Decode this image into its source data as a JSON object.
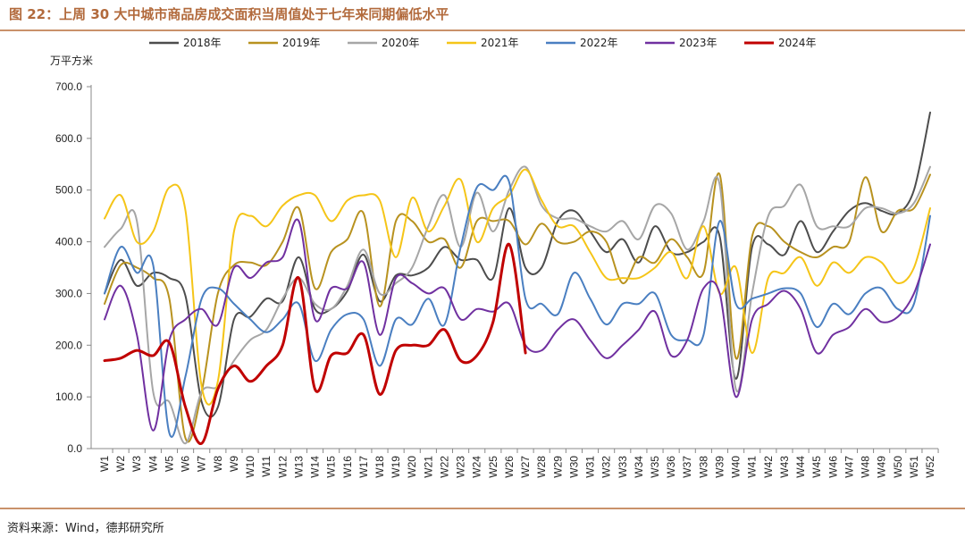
{
  "header": {
    "title": "图 22：上周 30 大中城市商品房成交面积当周值处于七年来同期偏低水平"
  },
  "footer": {
    "source": "资料来源：Wind，德邦研究所"
  },
  "chart_data": {
    "type": "line",
    "title": "上周 30 大中城市商品房成交面积当周值处于七年来同期偏低水平",
    "ylabel": "万平方米",
    "xlabel": "",
    "ylim": [
      0,
      700
    ],
    "yticks": [
      0,
      100,
      200,
      300,
      400,
      500,
      600,
      700
    ],
    "ytick_labels": [
      "0.0",
      "100.0",
      "200.0",
      "300.0",
      "400.0",
      "500.0",
      "600.0",
      "700.0"
    ],
    "grid": false,
    "legend_position": "top",
    "categories": [
      "W1",
      "W2",
      "W3",
      "W4",
      "W5",
      "W6",
      "W7",
      "W8",
      "W9",
      "W10",
      "W11",
      "W12",
      "W13",
      "W14",
      "W15",
      "W16",
      "W17",
      "W18",
      "W19",
      "W20",
      "W21",
      "W22",
      "W23",
      "W24",
      "W25",
      "W26",
      "W27",
      "W28",
      "W29",
      "W30",
      "W31",
      "W32",
      "W33",
      "W34",
      "W35",
      "W36",
      "W37",
      "W38",
      "W39",
      "W40",
      "W41",
      "W42",
      "W43",
      "W44",
      "W45",
      "W46",
      "W47",
      "W48",
      "W49",
      "W50",
      "W51",
      "W52"
    ],
    "series": [
      {
        "name": "2018年",
        "color": "#4d4d4d",
        "values": [
          300,
          365,
          315,
          340,
          330,
          295,
          90,
          80,
          250,
          255,
          290,
          285,
          370,
          270,
          270,
          305,
          375,
          285,
          335,
          335,
          350,
          390,
          365,
          365,
          330,
          465,
          350,
          350,
          440,
          460,
          420,
          380,
          405,
          360,
          430,
          380,
          380,
          400,
          410,
          135,
          390,
          395,
          375,
          440,
          380,
          420,
          460,
          475,
          460,
          455,
          500,
          650
        ]
      },
      {
        "name": "2019年",
        "color": "#b8921f",
        "values": [
          280,
          355,
          350,
          330,
          290,
          20,
          110,
          300,
          355,
          360,
          355,
          400,
          465,
          310,
          380,
          405,
          455,
          275,
          440,
          440,
          400,
          405,
          350,
          440,
          440,
          440,
          395,
          435,
          400,
          400,
          420,
          400,
          320,
          370,
          360,
          405,
          370,
          340,
          530,
          175,
          410,
          430,
          400,
          380,
          370,
          390,
          400,
          525,
          420,
          460,
          465,
          530
        ]
      },
      {
        "name": "2020年",
        "color": "#a6a6a6",
        "values": [
          390,
          425,
          440,
          110,
          90,
          10,
          110,
          120,
          170,
          210,
          230,
          290,
          330,
          280,
          270,
          315,
          385,
          300,
          320,
          350,
          430,
          490,
          390,
          495,
          420,
          500,
          545,
          470,
          445,
          445,
          430,
          420,
          440,
          405,
          470,
          455,
          385,
          440,
          510,
          115,
          300,
          450,
          470,
          510,
          430,
          430,
          430,
          465,
          465,
          455,
          475,
          545
        ]
      },
      {
        "name": "2021年",
        "color": "#f5c518",
        "values": [
          445,
          490,
          400,
          420,
          505,
          460,
          120,
          130,
          420,
          450,
          430,
          470,
          490,
          490,
          440,
          480,
          490,
          480,
          370,
          485,
          420,
          470,
          520,
          400,
          465,
          490,
          540,
          480,
          430,
          430,
          380,
          330,
          330,
          330,
          350,
          380,
          330,
          430,
          300,
          350,
          185,
          330,
          340,
          370,
          315,
          360,
          340,
          370,
          360,
          320,
          350,
          465
        ]
      },
      {
        "name": "2022年",
        "color": "#4a7fc1",
        "values": [
          300,
          390,
          340,
          355,
          30,
          140,
          290,
          310,
          280,
          250,
          225,
          250,
          280,
          170,
          230,
          260,
          250,
          160,
          250,
          240,
          290,
          240,
          390,
          505,
          500,
          515,
          290,
          280,
          260,
          340,
          290,
          240,
          280,
          280,
          300,
          220,
          210,
          220,
          440,
          280,
          290,
          300,
          310,
          300,
          235,
          280,
          260,
          300,
          310,
          270,
          280,
          450
        ]
      },
      {
        "name": "2023年",
        "color": "#7030a0",
        "values": [
          250,
          315,
          220,
          35,
          210,
          250,
          270,
          240,
          350,
          330,
          360,
          370,
          440,
          250,
          310,
          310,
          360,
          220,
          330,
          320,
          300,
          310,
          250,
          270,
          265,
          280,
          200,
          190,
          230,
          250,
          210,
          175,
          200,
          230,
          265,
          180,
          210,
          310,
          300,
          100,
          250,
          280,
          305,
          270,
          185,
          220,
          235,
          270,
          245,
          255,
          300,
          395
        ]
      },
      {
        "name": "2024年",
        "color": "#c00000",
        "values": [
          170,
          175,
          190,
          180,
          205,
          80,
          10,
          115,
          160,
          130,
          160,
          200,
          330,
          115,
          180,
          185,
          220,
          105,
          190,
          200,
          200,
          230,
          170,
          180,
          245,
          395,
          185,
          null,
          null,
          null,
          null,
          null,
          null,
          null,
          null,
          null,
          null,
          null,
          null,
          null,
          null,
          null,
          null,
          null,
          null,
          null,
          null,
          null,
          null,
          null,
          null,
          null
        ]
      }
    ]
  }
}
